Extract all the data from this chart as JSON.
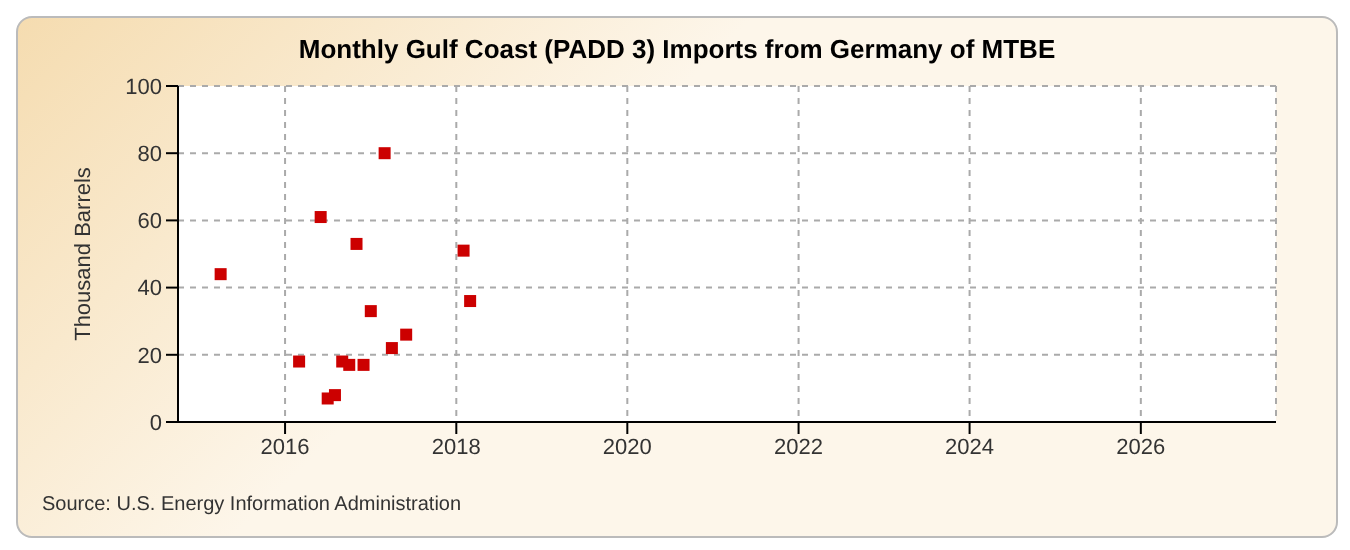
{
  "chart_data": {
    "type": "scatter",
    "title": "Monthly Gulf Coast (PADD 3) Imports from Germany of MTBE",
    "ylabel": "Thousand Barrels",
    "x": [
      "2015-04",
      "2016-03",
      "2016-06",
      "2016-07",
      "2016-08",
      "2016-09",
      "2016-10",
      "2016-11",
      "2016-12",
      "2017-01",
      "2017-03",
      "2017-04",
      "2017-06",
      "2018-02",
      "2018-03"
    ],
    "series": [
      {
        "color": "#cc0000",
        "values": [
          44,
          18,
          61,
          7,
          8,
          18,
          17,
          53,
          17,
          33,
          80,
          22,
          26,
          51,
          36
        ]
      }
    ],
    "xlim": [
      "2014-10",
      "2027-08"
    ],
    "xticks": [
      "2016",
      "2018",
      "2020",
      "2022",
      "2024",
      "2026"
    ],
    "ylim": [
      0,
      100
    ],
    "yticks": [
      0,
      20,
      40,
      60,
      80,
      100
    ],
    "grid": true,
    "marker": "square",
    "annotations": [
      "Source: U.S. Energy Information Administration"
    ]
  }
}
